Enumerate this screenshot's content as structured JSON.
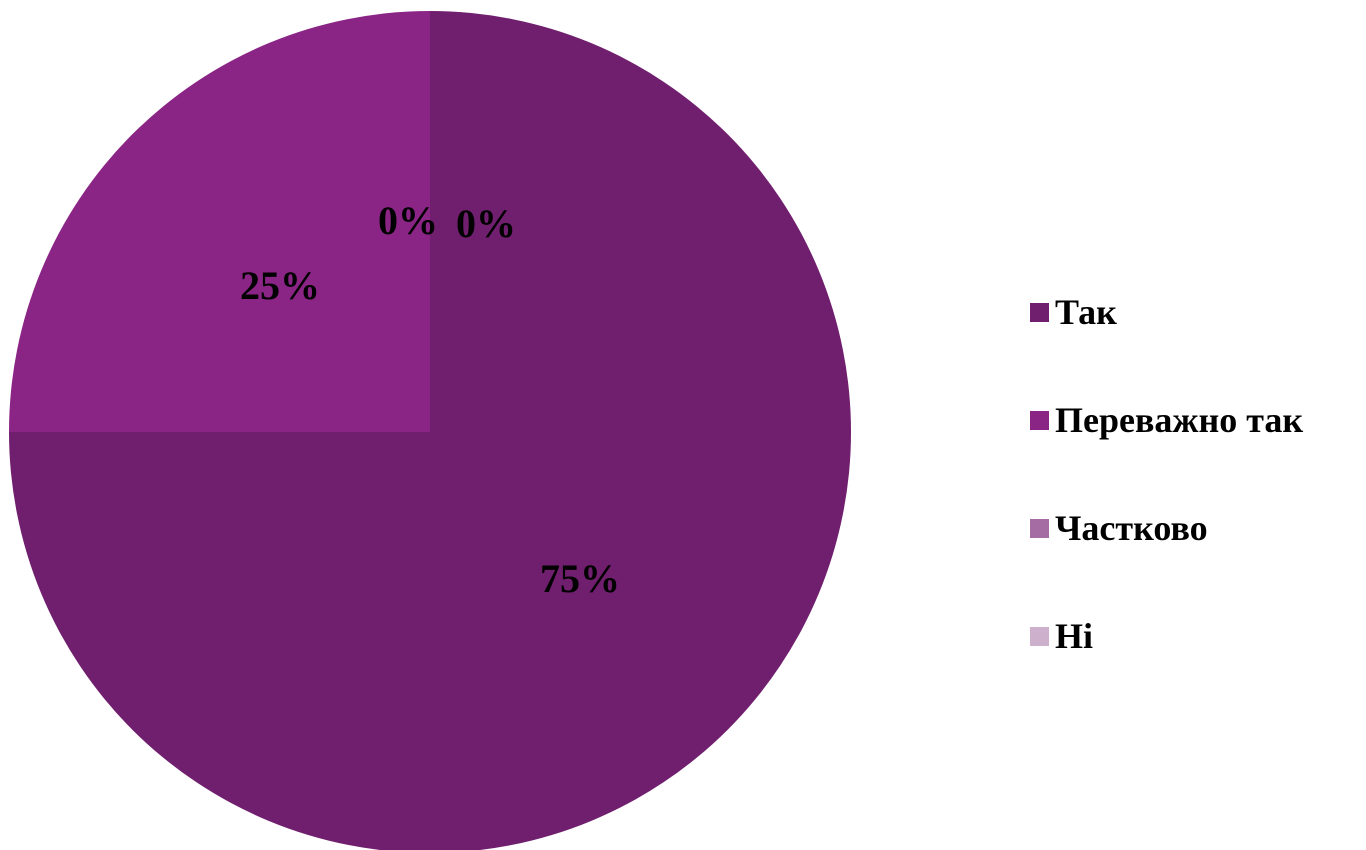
{
  "chart_data": {
    "type": "pie",
    "start_angle_deg": 0,
    "direction": "clockwise",
    "slices": [
      {
        "label": "Так",
        "value": 75,
        "data_label": "75%",
        "color": "#701E6E"
      },
      {
        "label": "Переважно так",
        "value": 25,
        "data_label": "25%",
        "color": "#8A2586"
      },
      {
        "label": "Частково",
        "value": 0,
        "data_label": "0%",
        "color": "#A56BA3"
      },
      {
        "label": "Ні",
        "value": 0,
        "data_label": "0%",
        "color": "#CDB0CB"
      }
    ],
    "legend_position": "right"
  }
}
